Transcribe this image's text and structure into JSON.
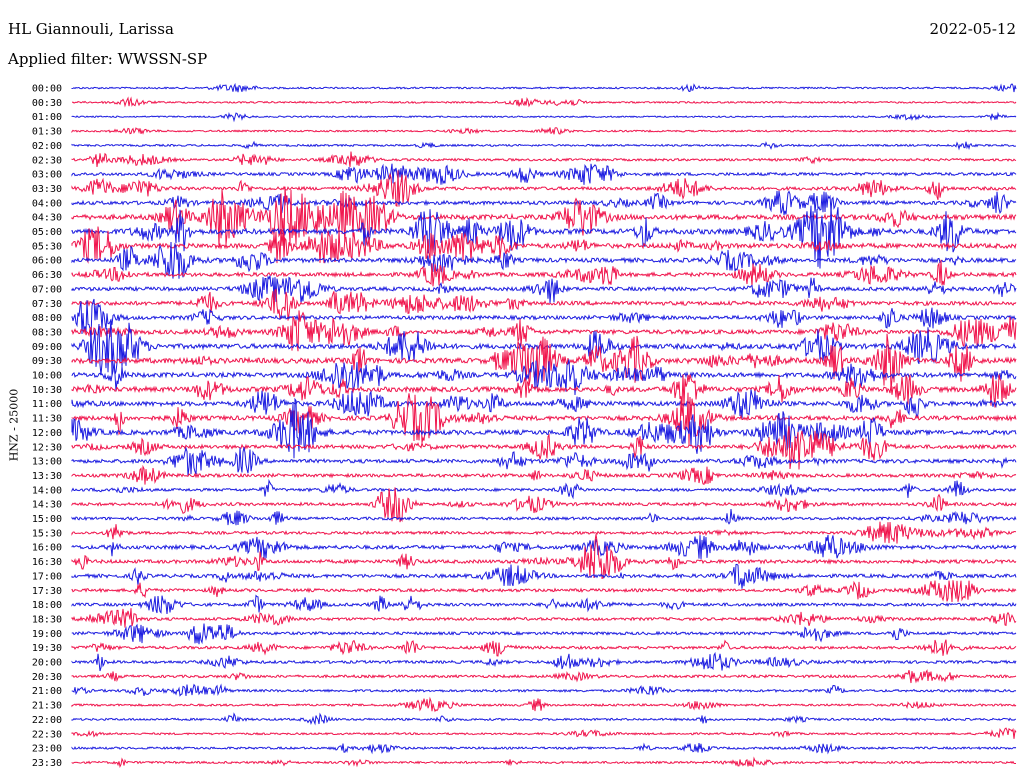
{
  "header": {
    "station": "HL Giannouli, Larissa",
    "filter": "Applied filter: WWSSN-SP",
    "date": "2022-05-12"
  },
  "chart_data": {
    "type": "line",
    "title": "HL Giannouli, Larissa",
    "subtitle": "Applied filter: WWSSN-SP",
    "ylabel": "HNZ - 25000",
    "colors": {
      "blue": "#1c1ce0",
      "red": "#f0144c"
    },
    "rows": [
      {
        "label": "00:00",
        "color": "#1c1ce0",
        "activity": 0.1
      },
      {
        "label": "00:30",
        "color": "#f0144c",
        "activity": 0.1
      },
      {
        "label": "01:00",
        "color": "#1c1ce0",
        "activity": 0.05
      },
      {
        "label": "01:30",
        "color": "#f0144c",
        "activity": 0.1
      },
      {
        "label": "02:00",
        "color": "#1c1ce0",
        "activity": 0.15
      },
      {
        "label": "02:30",
        "color": "#f0144c",
        "activity": 0.25
      },
      {
        "label": "03:00",
        "color": "#1c1ce0",
        "activity": 0.4
      },
      {
        "label": "03:30",
        "color": "#f0144c",
        "activity": 0.45
      },
      {
        "label": "04:00",
        "color": "#1c1ce0",
        "activity": 0.55
      },
      {
        "label": "04:30",
        "color": "#f0144c",
        "activity": 0.8
      },
      {
        "label": "05:00",
        "color": "#1c1ce0",
        "activity": 0.9
      },
      {
        "label": "05:30",
        "color": "#f0144c",
        "activity": 0.75
      },
      {
        "label": "06:00",
        "color": "#1c1ce0",
        "activity": 0.65
      },
      {
        "label": "06:30",
        "color": "#f0144c",
        "activity": 0.6
      },
      {
        "label": "07:00",
        "color": "#1c1ce0",
        "activity": 0.55
      },
      {
        "label": "07:30",
        "color": "#f0144c",
        "activity": 0.6
      },
      {
        "label": "08:00",
        "color": "#1c1ce0",
        "activity": 0.55
      },
      {
        "label": "08:30",
        "color": "#f0144c",
        "activity": 0.65
      },
      {
        "label": "09:00",
        "color": "#1c1ce0",
        "activity": 0.8
      },
      {
        "label": "09:30",
        "color": "#f0144c",
        "activity": 0.85
      },
      {
        "label": "10:00",
        "color": "#1c1ce0",
        "activity": 0.75
      },
      {
        "label": "10:30",
        "color": "#f0144c",
        "activity": 0.8
      },
      {
        "label": "11:00",
        "color": "#1c1ce0",
        "activity": 0.7
      },
      {
        "label": "11:30",
        "color": "#f0144c",
        "activity": 0.7
      },
      {
        "label": "12:00",
        "color": "#1c1ce0",
        "activity": 0.75
      },
      {
        "label": "12:30",
        "color": "#f0144c",
        "activity": 0.55
      },
      {
        "label": "13:00",
        "color": "#1c1ce0",
        "activity": 0.55
      },
      {
        "label": "13:30",
        "color": "#f0144c",
        "activity": 0.45
      },
      {
        "label": "14:00",
        "color": "#1c1ce0",
        "activity": 0.35
      },
      {
        "label": "14:30",
        "color": "#f0144c",
        "activity": 0.4
      },
      {
        "label": "15:00",
        "color": "#1c1ce0",
        "activity": 0.35
      },
      {
        "label": "15:30",
        "color": "#f0144c",
        "activity": 0.35
      },
      {
        "label": "16:00",
        "color": "#1c1ce0",
        "activity": 0.55
      },
      {
        "label": "16:30",
        "color": "#f0144c",
        "activity": 0.5
      },
      {
        "label": "17:00",
        "color": "#1c1ce0",
        "activity": 0.5
      },
      {
        "label": "17:30",
        "color": "#f0144c",
        "activity": 0.4
      },
      {
        "label": "18:00",
        "color": "#1c1ce0",
        "activity": 0.4
      },
      {
        "label": "18:30",
        "color": "#f0144c",
        "activity": 0.35
      },
      {
        "label": "19:00",
        "color": "#1c1ce0",
        "activity": 0.35
      },
      {
        "label": "19:30",
        "color": "#f0144c",
        "activity": 0.35
      },
      {
        "label": "20:00",
        "color": "#1c1ce0",
        "activity": 0.35
      },
      {
        "label": "20:30",
        "color": "#f0144c",
        "activity": 0.3
      },
      {
        "label": "21:00",
        "color": "#1c1ce0",
        "activity": 0.25
      },
      {
        "label": "21:30",
        "color": "#f0144c",
        "activity": 0.2
      },
      {
        "label": "22:00",
        "color": "#1c1ce0",
        "activity": 0.2
      },
      {
        "label": "22:30",
        "color": "#f0144c",
        "activity": 0.15
      },
      {
        "label": "23:00",
        "color": "#1c1ce0",
        "activity": 0.2
      },
      {
        "label": "23:30",
        "color": "#f0144c",
        "activity": 0.2
      }
    ],
    "grid": false,
    "legend": "none"
  }
}
